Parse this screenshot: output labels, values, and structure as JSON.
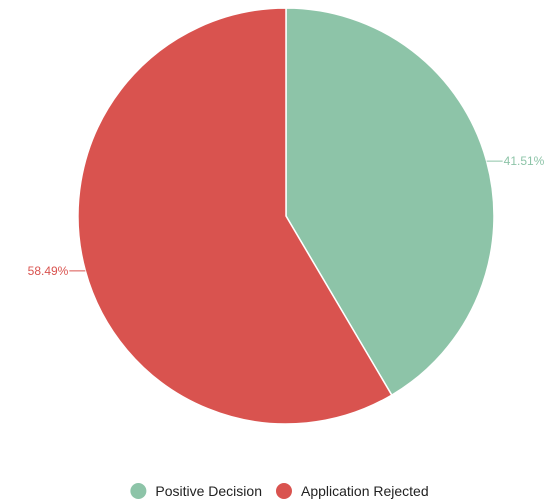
{
  "chart_data": {
    "type": "pie",
    "title": "",
    "slices": [
      {
        "label": "Positive Decision",
        "value": 41.51,
        "display": "41.51%",
        "color": "#8dc4a8"
      },
      {
        "label": "Application Rejected",
        "value": 58.49,
        "display": "58.49%",
        "color": "#d9534f"
      }
    ],
    "start_angle_deg": 0,
    "direction": "clockwise",
    "legend": {
      "position": "bottom",
      "items": [
        "Positive Decision",
        "Application Rejected"
      ]
    }
  }
}
